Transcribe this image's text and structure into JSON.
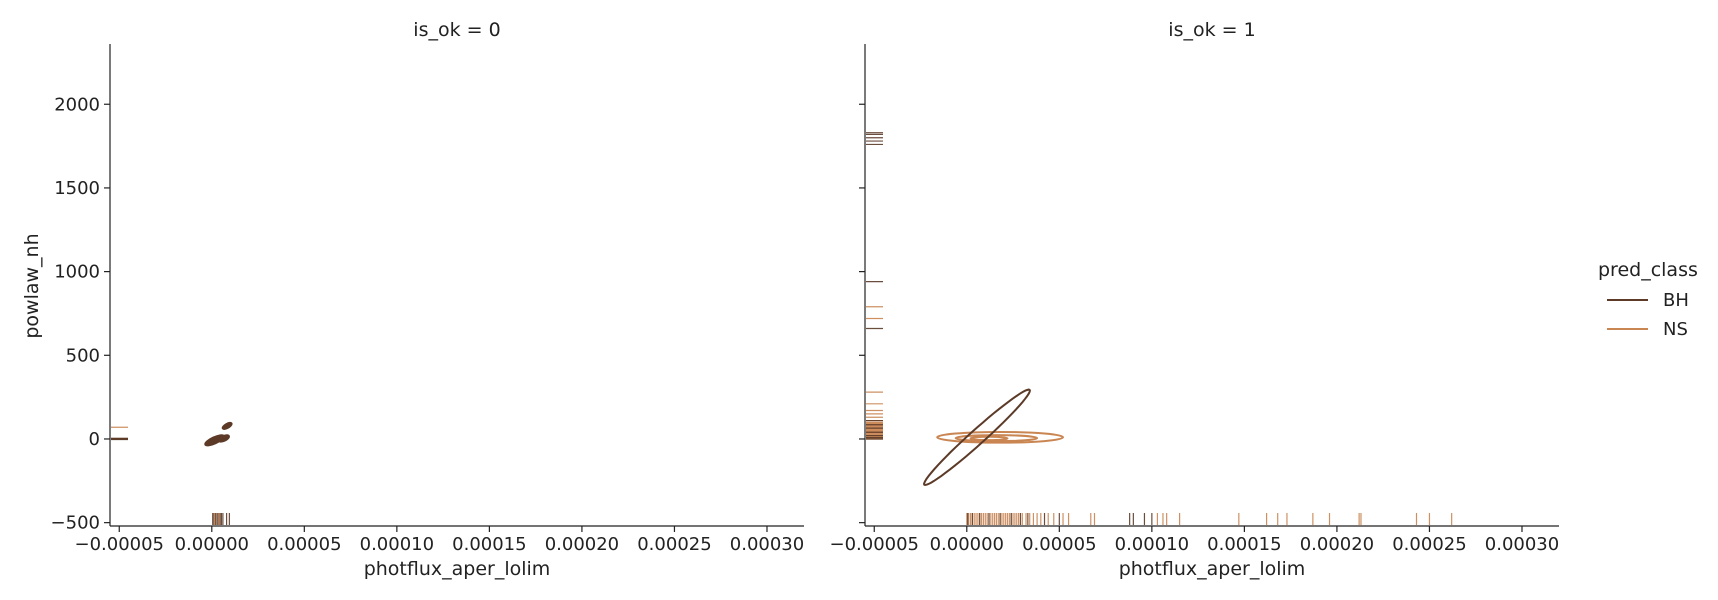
{
  "chart_data": {
    "type": "kde-contour-rug",
    "xlabel": "photflux_aper_lolim",
    "ylabel": "powlaw_nh",
    "xlim": [
      -5.5e-05,
      0.00032
    ],
    "ylim": [
      -520,
      2360
    ],
    "x_ticks": [
      {
        "value": -5e-05,
        "label": "−0.00005"
      },
      {
        "value": 0,
        "label": "0.00000"
      },
      {
        "value": 5e-05,
        "label": "0.00005"
      },
      {
        "value": 0.0001,
        "label": "0.00010"
      },
      {
        "value": 0.00015,
        "label": "0.00015"
      },
      {
        "value": 0.0002,
        "label": "0.00020"
      },
      {
        "value": 0.00025,
        "label": "0.00025"
      },
      {
        "value": 0.0003,
        "label": "0.00030"
      }
    ],
    "y_ticks": [
      {
        "value": -500,
        "label": "−500"
      },
      {
        "value": 0,
        "label": "0"
      },
      {
        "value": 500,
        "label": "500"
      },
      {
        "value": 1000,
        "label": "1000"
      },
      {
        "value": 1500,
        "label": "1500"
      },
      {
        "value": 2000,
        "label": "2000"
      }
    ],
    "legend": {
      "title": "pred_class",
      "placement": "right",
      "entries": [
        {
          "label": "BH",
          "color": "#5c3a27"
        },
        {
          "label": "NS",
          "color": "#c98552"
        }
      ]
    },
    "panels": [
      {
        "title": "is_ok = 0",
        "contours": [
          {
            "class": "BH",
            "cx": 1.5e-06,
            "cy": -8,
            "rx": 5.5e-06,
            "ry": 18,
            "rotate": -25,
            "filled": true
          },
          {
            "class": "BH",
            "cx": 6.5e-06,
            "cy": 3,
            "rx": 3e-06,
            "ry": 14,
            "rotate": -25,
            "filled": true
          },
          {
            "class": "BH",
            "cx": 8.3e-06,
            "cy": 78,
            "rx": 2.7e-06,
            "ry": 12,
            "rotate": -30,
            "filled": true
          }
        ],
        "rug_x": [
          {
            "class": "BH",
            "values": [
              5e-07,
              1.2e-06,
              2e-06,
              2.8e-06,
              3.5e-06,
              4.5e-06,
              5.2e-06,
              6e-06,
              8e-06,
              9.5e-06
            ]
          },
          {
            "class": "NS",
            "values": [
              1.5e-06,
              3.8e-06
            ]
          }
        ],
        "rug_y": [
          {
            "class": "BH",
            "values": [
              -3,
              -1,
              0,
              1,
              2,
              3,
              4
            ]
          },
          {
            "class": "NS",
            "values": [
              70
            ]
          }
        ]
      },
      {
        "title": "is_ok = 1",
        "contours": [
          {
            "class": "NS",
            "cx": 1.8e-05,
            "cy": 10,
            "rx": 3.4e-05,
            "ry": 32,
            "rotate": 0,
            "filled": false
          },
          {
            "class": "NS",
            "cx": 1.6e-05,
            "cy": 5,
            "rx": 2.2e-05,
            "ry": 18,
            "rotate": 0,
            "filled": false
          },
          {
            "class": "NS",
            "cx": 1.2e-05,
            "cy": 3,
            "rx": 1e-05,
            "ry": 10,
            "rotate": 0,
            "filled": false
          },
          {
            "class": "BH",
            "cx": 5.5e-06,
            "cy": 10,
            "rx": 5.8e-06,
            "ry": 285,
            "rotate": 0,
            "filled": false,
            "skew": 2.8e-05
          }
        ],
        "rug_x": [
          {
            "class": "NS",
            "values": [
              0.0,
              1e-06,
              2e-06,
              3e-06,
              4e-06,
              5e-06,
              6e-06,
              7e-06,
              8e-06,
              9e-06,
              1e-05,
              1.1e-05,
              1.2e-05,
              1.3e-05,
              1.4e-05,
              1.5e-05,
              1.6e-05,
              1.7e-05,
              1.8e-05,
              1.9e-05,
              2e-05,
              2.1e-05,
              2.2e-05,
              2.3e-05,
              2.4e-05,
              2.5e-05,
              2.6e-05,
              2.7e-05,
              2.8e-05,
              3e-05,
              3.2e-05,
              3.4e-05,
              3.6e-05,
              3.8e-05,
              4e-05,
              4.4e-05,
              4.7e-05,
              5.2e-05,
              5.5e-05,
              6.7e-05,
              6.9e-05,
              0.000103,
              0.000106,
              0.000108,
              0.000115,
              0.000147,
              0.000162,
              0.000168,
              0.000173,
              0.000187,
              0.000196,
              0.000212,
              0.000213,
              0.000243,
              0.00025,
              0.000262
            ]
          },
          {
            "class": "BH",
            "values": [
              5e-07,
              3e-06,
              7e-06,
              1.2e-05,
              1.8e-05,
              2.4e-05,
              2.9e-05,
              3.3e-05,
              4.2e-05,
              5e-05,
              8.8e-05,
              9e-05,
              9.6e-05,
              0.0001
            ]
          }
        ],
        "rug_y": [
          {
            "class": "NS",
            "values": [
              0,
              5,
              10,
              15,
              20,
              25,
              30,
              35,
              40,
              45,
              50,
              55,
              60,
              65,
              70,
              75,
              80,
              85,
              90,
              95,
              100,
              110,
              130,
              150,
              170,
              210,
              280,
              720,
              790
            ]
          },
          {
            "class": "BH",
            "values": [
              0,
              8,
              20,
              40,
              65,
              85,
              110,
              660,
              940,
              1760,
              1780,
              1800,
              1820,
              1830
            ]
          }
        ]
      }
    ]
  }
}
